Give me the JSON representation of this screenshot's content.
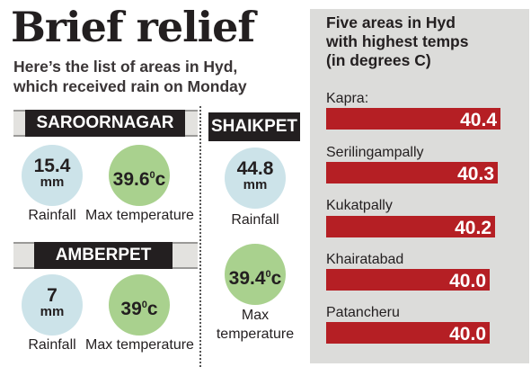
{
  "headline": "Brief relief",
  "subhead": [
    "Here’s the list of areas in Hyd,",
    "which received rain on Monday"
  ],
  "saroornagar": {
    "name": "SAROORNAGAR",
    "rain_value": "15.4",
    "rain_unit": "mm",
    "temp_value": "39.6",
    "temp_unit": "c",
    "rain_label": "Rainfall",
    "temp_label": "Max temperature"
  },
  "amberpet": {
    "name": "AMBERPET",
    "rain_value": "7",
    "rain_unit": "mm",
    "temp_value": "39",
    "temp_unit": "c",
    "rain_label": "Rainfall",
    "temp_label": "Max temperature"
  },
  "shaikpet": {
    "name": "SHAIKPET",
    "rain_value": "44.8",
    "rain_unit": "mm",
    "temp_value": "39.4",
    "temp_unit": "c",
    "rain_label": "Rainfall",
    "temp_label": [
      "Max",
      "temperature"
    ]
  },
  "degree_sign": "0",
  "colors": {
    "bar": "#b51f24",
    "panel": "#dcdcda",
    "rain_circle": "#cce3e9",
    "temp_circle": "#a9d18e",
    "banner": "#231f20"
  },
  "chart_data": {
    "type": "bar",
    "orientation": "horizontal",
    "title": [
      "Five areas in Hyd",
      "with highest temps",
      "(in degrees C)"
    ],
    "categories": [
      "Kapra:",
      "Serilingampally",
      "Kukatpally",
      "Khairatabad",
      "Patancheru"
    ],
    "values": [
      40.4,
      40.3,
      40.2,
      40.0,
      40.0
    ],
    "value_labels": [
      "40.4",
      "40.3",
      "40.2",
      "40.0",
      "40.0"
    ],
    "xlabel": "",
    "ylabel": ""
  }
}
